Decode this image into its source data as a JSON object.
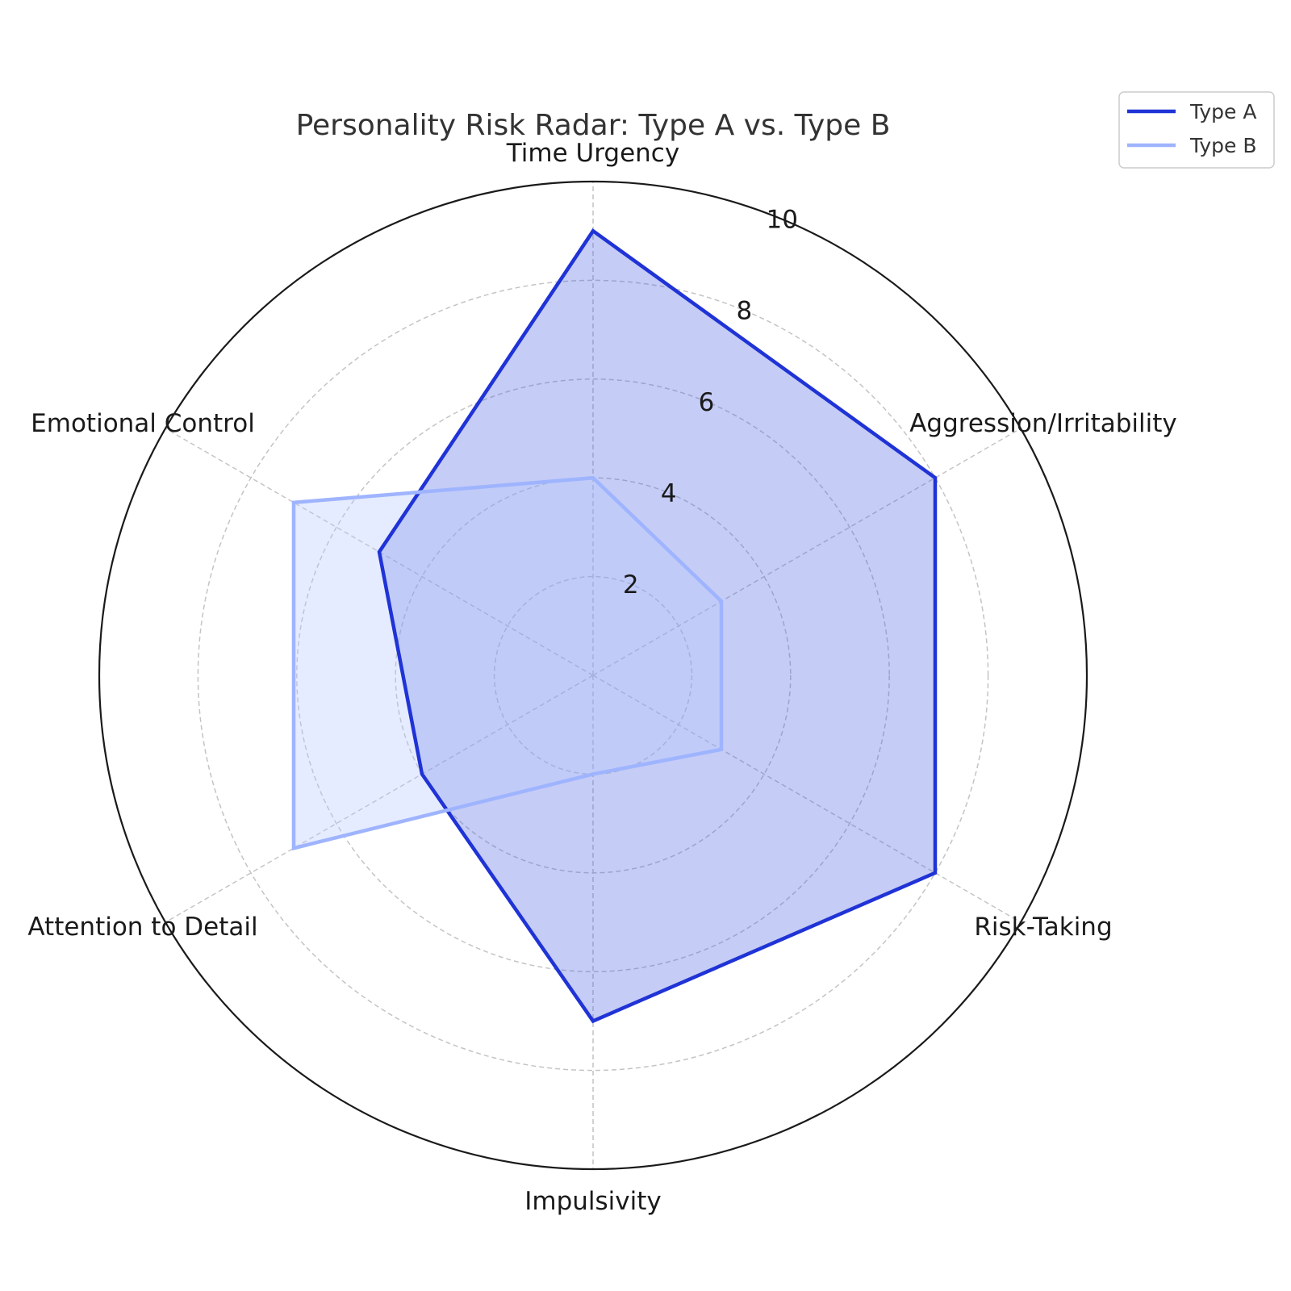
{
  "chart_data": {
    "type": "radar",
    "title": "Personality Risk Radar: Type A vs. Type B",
    "categories": [
      "Time Urgency",
      "Aggression/Irritability",
      "Risk-Taking",
      "Impulsivity",
      "Attention to Detail",
      "Emotional Control"
    ],
    "series": [
      {
        "name": "Type A",
        "values": [
          9,
          8,
          8,
          7,
          4,
          5
        ],
        "color": "#1f33d6",
        "fill": "#4a5fe0",
        "fill_opacity": 0.32
      },
      {
        "name": "Type B",
        "values": [
          4,
          3,
          3,
          2,
          7,
          7
        ],
        "color": "#9fb4ff",
        "fill": "#b8c8ff",
        "fill_opacity": 0.35
      }
    ],
    "rlim": [
      0,
      10
    ],
    "r_ticks": [
      "2",
      "4",
      "6",
      "8",
      "10"
    ],
    "grid": true,
    "legend_position": "top-right"
  }
}
